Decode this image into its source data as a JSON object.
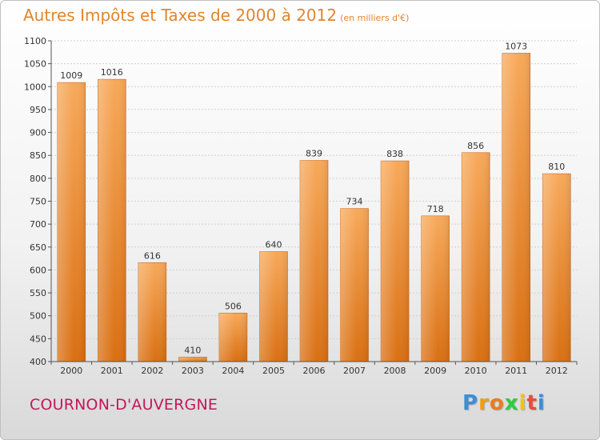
{
  "chart_data": {
    "type": "bar",
    "title": "Autres Impôts et Taxes de 2000 à 2012",
    "subtitle": "(en milliers d'€)",
    "categories": [
      "2000",
      "2001",
      "2002",
      "2003",
      "2004",
      "2005",
      "2006",
      "2007",
      "2008",
      "2009",
      "2010",
      "2011",
      "2012"
    ],
    "values": [
      1009,
      1016,
      616,
      410,
      506,
      640,
      839,
      734,
      838,
      718,
      856,
      1073,
      810
    ],
    "ylim": [
      400,
      1100
    ],
    "yticks": [
      400,
      450,
      500,
      550,
      600,
      650,
      700,
      750,
      800,
      850,
      900,
      950,
      1000,
      1050,
      1100
    ],
    "grid": true,
    "bar_color": "#f08a2c"
  },
  "location": "COURNON-D'AUVERGNE",
  "logo": {
    "letters": [
      "P",
      "r",
      "o",
      "x",
      "i",
      "t",
      "i"
    ],
    "colors": [
      "#3a8fd6",
      "#f39c12",
      "#e67e22",
      "#2ecc40",
      "#f1c40f",
      "#e74c3c",
      "#3a8fd6"
    ]
  }
}
